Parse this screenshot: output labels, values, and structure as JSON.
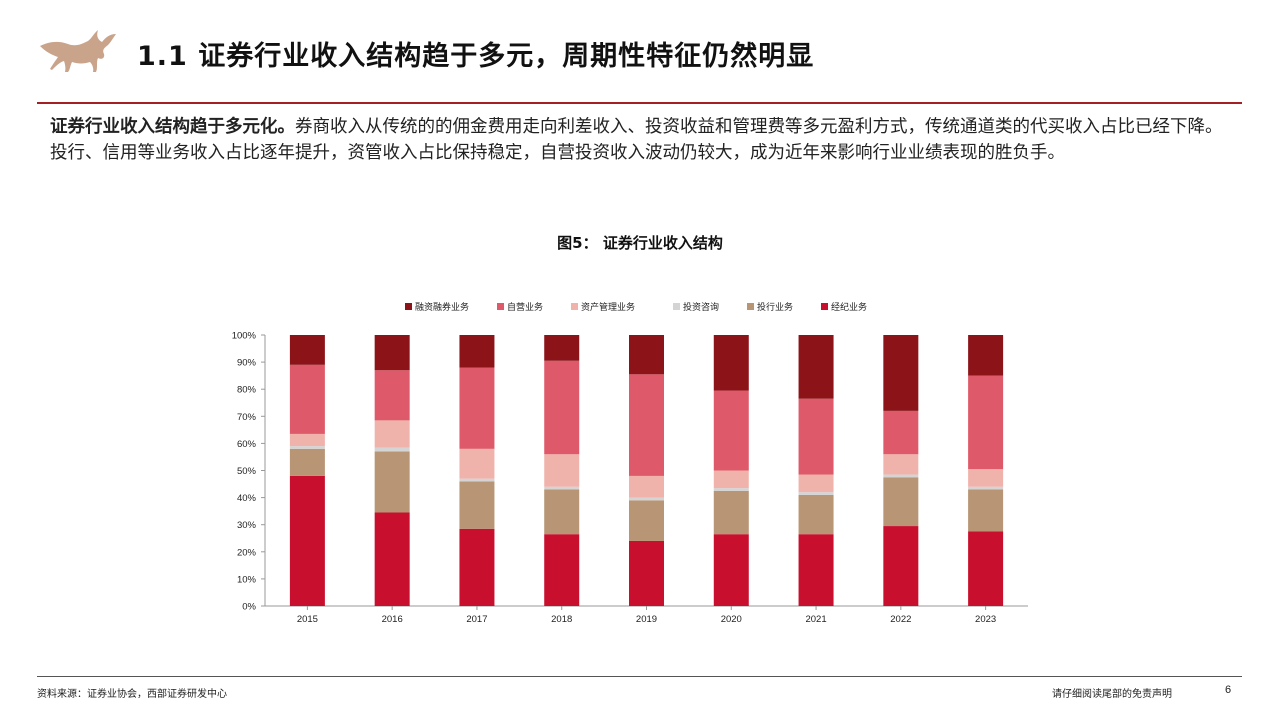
{
  "header": {
    "title": "1.1 证券行业收入结构趋于多元，周期性特征仍然明显",
    "logo_icon": "bull-icon",
    "accent_color": "#a32125",
    "logo_color": "#c9a48a"
  },
  "intro": {
    "lead": "证券行业收入结构趋于多元化。",
    "body": "券商收入从传统的的佣金费用走向利差收入、投资收益和管理费等多元盈利方式，传统通道类的代买收入占比已经下降。投行、信用等业务收入占比逐年提升，资管收入占比保持稳定，自营投资收入波动仍较大，成为近年来影响行业业绩表现的胜负手。"
  },
  "figure": {
    "title": "图5： 证券行业收入结构"
  },
  "chart_data": {
    "type": "bar",
    "stacked": true,
    "normalized": true,
    "categories": [
      "2015",
      "2016",
      "2017",
      "2018",
      "2019",
      "2020",
      "2021",
      "2022",
      "2023"
    ],
    "ylim": [
      0,
      100
    ],
    "yticks": [
      "0%",
      "10%",
      "20%",
      "30%",
      "40%",
      "50%",
      "60%",
      "70%",
      "80%",
      "90%",
      "100%"
    ],
    "legend_position": "top",
    "grid": false,
    "series": [
      {
        "name": "经纪业务",
        "color": "#c8102e",
        "values": [
          48,
          34.5,
          28.5,
          26.5,
          24,
          26.5,
          26.5,
          29.5,
          27.5
        ]
      },
      {
        "name": "投行业务",
        "color": "#b89574",
        "values": [
          10,
          22.5,
          17.5,
          16.5,
          15,
          16,
          14.5,
          18,
          15.5
        ]
      },
      {
        "name": "投资咨询",
        "color": "#d4d4d4",
        "values": [
          1,
          1.5,
          1,
          1,
          1,
          1,
          1,
          1,
          1
        ]
      },
      {
        "name": "资产管理业务",
        "color": "#f0b3ac",
        "values": [
          4.5,
          10,
          11,
          12,
          8,
          6.5,
          6.5,
          7.5,
          6.5
        ]
      },
      {
        "name": "自营业务",
        "color": "#de5a6a",
        "values": [
          25.5,
          18.5,
          30,
          34.5,
          37.5,
          29.5,
          28,
          16,
          34.5
        ]
      },
      {
        "name": "融资融券业务",
        "color": "#8c1419",
        "values": [
          11,
          13,
          12,
          9.5,
          14.5,
          20.5,
          23.5,
          28,
          15
        ]
      }
    ]
  },
  "footer": {
    "source": "资料来源：证券业协会，西部证券研发中心",
    "disclaimer": "请仔细阅读尾部的免责声明",
    "page_number": "6"
  }
}
